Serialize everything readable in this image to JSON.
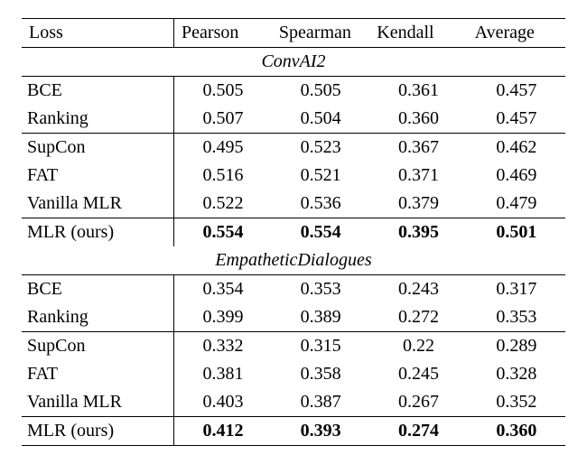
{
  "header": {
    "loss": "Loss",
    "cols": [
      "Pearson",
      "Spearman",
      "Kendall",
      "Average"
    ]
  },
  "sections": [
    {
      "title": "ConvAI2",
      "groups": [
        [
          {
            "name": "BCE",
            "vals": [
              "0.505",
              "0.505",
              "0.361",
              "0.457"
            ]
          },
          {
            "name": "Ranking",
            "vals": [
              "0.507",
              "0.504",
              "0.360",
              "0.457"
            ]
          }
        ],
        [
          {
            "name": "SupCon",
            "vals": [
              "0.495",
              "0.523",
              "0.367",
              "0.462"
            ]
          },
          {
            "name": "FAT",
            "vals": [
              "0.516",
              "0.521",
              "0.371",
              "0.469"
            ]
          },
          {
            "name": "Vanilla MLR",
            "vals": [
              "0.522",
              "0.536",
              "0.379",
              "0.479"
            ]
          }
        ],
        [
          {
            "name": "MLR (ours)",
            "vals": [
              "0.554",
              "0.554",
              "0.395",
              "0.501"
            ],
            "bold": true
          }
        ]
      ]
    },
    {
      "title": "EmpatheticDialogues",
      "groups": [
        [
          {
            "name": "BCE",
            "vals": [
              "0.354",
              "0.353",
              "0.243",
              "0.317"
            ]
          },
          {
            "name": "Ranking",
            "vals": [
              "0.399",
              "0.389",
              "0.272",
              "0.353"
            ]
          }
        ],
        [
          {
            "name": "SupCon",
            "vals": [
              "0.332",
              "0.315",
              "0.22",
              "0.289"
            ]
          },
          {
            "name": "FAT",
            "vals": [
              "0.381",
              "0.358",
              "0.245",
              "0.328"
            ]
          },
          {
            "name": "Vanilla MLR",
            "vals": [
              "0.403",
              "0.387",
              "0.267",
              "0.352"
            ]
          }
        ],
        [
          {
            "name": "MLR (ours)",
            "vals": [
              "0.412",
              "0.393",
              "0.274",
              "0.360"
            ],
            "bold": true
          }
        ]
      ]
    }
  ]
}
